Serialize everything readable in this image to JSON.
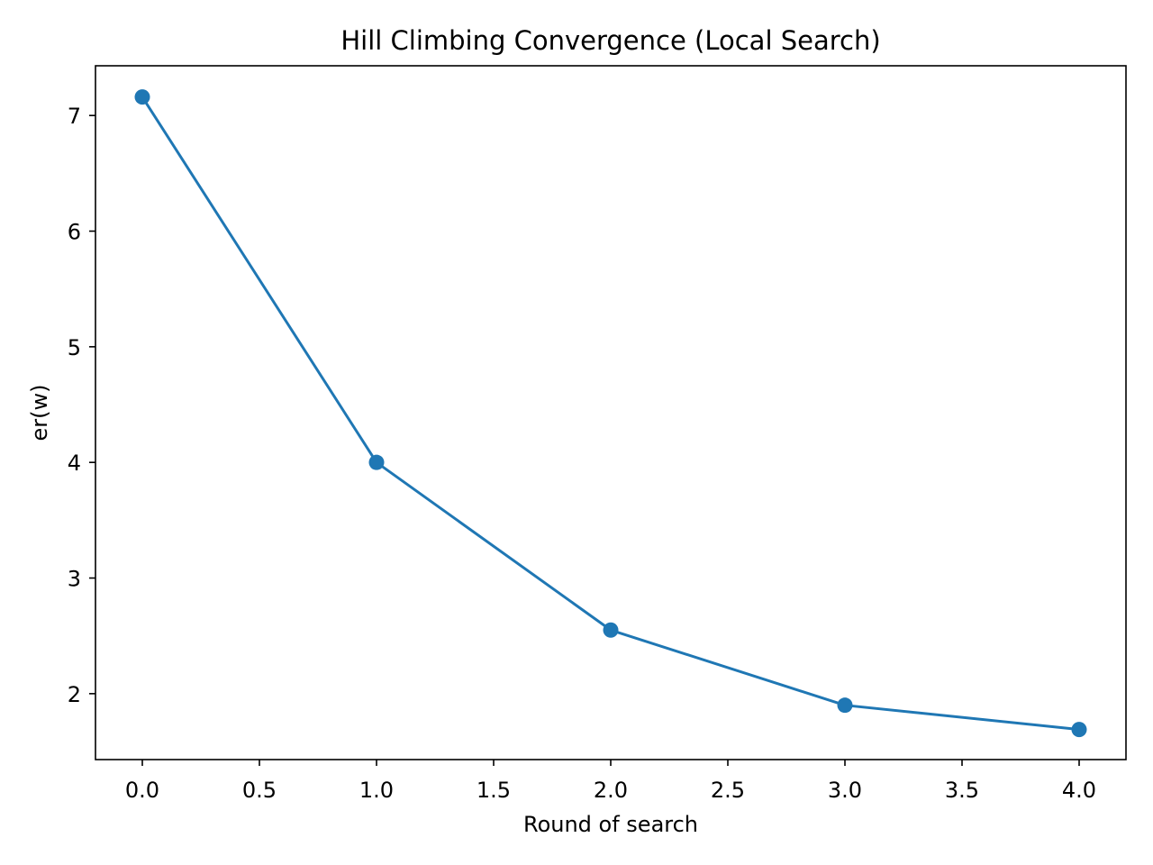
{
  "chart_data": {
    "type": "line",
    "title": "Hill Climbing Convergence (Local Search)",
    "xlabel": "Round of search",
    "ylabel": "er(w)",
    "xlim": [
      -0.2,
      4.2
    ],
    "ylim": [
      1.43,
      7.43
    ],
    "xticks": [
      0.0,
      0.5,
      1.0,
      1.5,
      2.0,
      2.5,
      3.0,
      3.5,
      4.0
    ],
    "xtick_labels": [
      "0.0",
      "0.5",
      "1.0",
      "1.5",
      "2.0",
      "2.5",
      "3.0",
      "3.5",
      "4.0"
    ],
    "yticks": [
      2,
      3,
      4,
      5,
      6,
      7
    ],
    "ytick_labels": [
      "2",
      "3",
      "4",
      "5",
      "6",
      "7"
    ],
    "grid": false,
    "series": [
      {
        "x": [
          0,
          1,
          2,
          3,
          4
        ],
        "y": [
          7.16,
          4.0,
          2.55,
          1.9,
          1.69
        ],
        "color": "#1f77b4",
        "marker": "circle"
      }
    ]
  }
}
